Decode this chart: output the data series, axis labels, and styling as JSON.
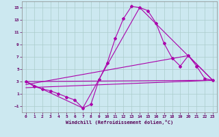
{
  "xlabel": "Windchill (Refroidissement éolien,°C)",
  "background_color": "#cce8f0",
  "line_color": "#aa00aa",
  "grid_color": "#aacccc",
  "xlim": [
    -0.5,
    23.5
  ],
  "ylim": [
    -2.0,
    16.0
  ],
  "xticks": [
    0,
    1,
    2,
    3,
    4,
    5,
    6,
    7,
    8,
    9,
    10,
    11,
    12,
    13,
    14,
    15,
    16,
    17,
    18,
    19,
    20,
    21,
    22,
    23
  ],
  "yticks": [
    -1,
    1,
    3,
    5,
    7,
    9,
    11,
    13,
    15
  ],
  "line1_x": [
    0,
    1,
    2,
    3,
    4,
    5,
    6,
    7,
    8,
    9,
    10,
    11,
    12,
    13,
    14,
    15,
    16,
    17,
    18,
    19,
    20,
    21,
    22,
    23
  ],
  "line1_y": [
    3.0,
    2.2,
    1.8,
    1.5,
    1.0,
    0.5,
    0.0,
    -1.3,
    -0.7,
    3.3,
    6.0,
    10.0,
    13.2,
    15.2,
    15.0,
    14.5,
    12.5,
    9.2,
    6.8,
    5.5,
    7.2,
    5.5,
    3.5,
    3.2
  ],
  "line2_x": [
    0,
    23
  ],
  "line2_y": [
    3.0,
    3.2
  ],
  "line3_x": [
    0,
    7,
    14,
    23
  ],
  "line3_y": [
    3.0,
    -1.3,
    15.0,
    3.2
  ],
  "line4_x": [
    0,
    23
  ],
  "line4_y": [
    2.0,
    3.2
  ],
  "line5_x": [
    0,
    20,
    23
  ],
  "line5_y": [
    2.5,
    7.2,
    3.2
  ]
}
